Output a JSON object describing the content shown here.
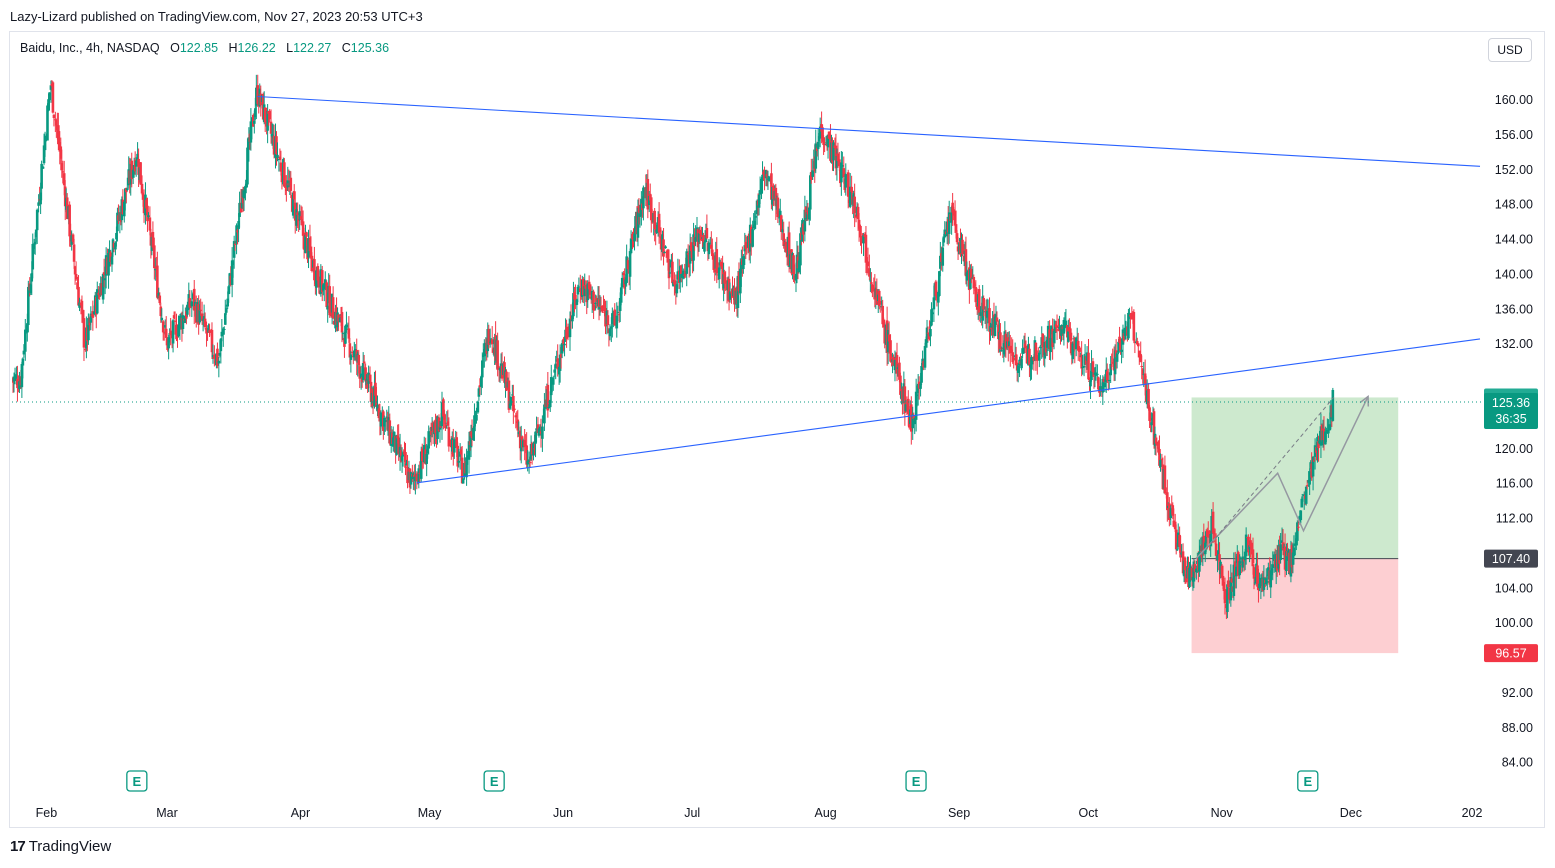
{
  "header": {
    "published": "Lazy-Lizard published on TradingView.com, Nov 27, 2023 20:53 UTC+3"
  },
  "legend": {
    "symbol": "Baidu, Inc., 4h, NASDAQ",
    "o_label": "O",
    "o": "122.85",
    "h_label": "H",
    "h": "126.22",
    "l_label": "L",
    "l": "122.27",
    "c_label": "C",
    "c": "125.36"
  },
  "currency_button": "USD",
  "brand": {
    "logo_glyph": "17",
    "name": "TradingView"
  },
  "colors": {
    "up": "#089981",
    "down": "#f23645",
    "trendline": "#2962ff",
    "profit_zone": "#4caf50",
    "loss_zone": "#f7525f",
    "neutral": "#434651"
  },
  "chart_data": {
    "type": "candlestick",
    "symbol": "Baidu, Inc.",
    "timeframe": "4h",
    "exchange": "NASDAQ",
    "x_labels": [
      "Feb",
      "Mar",
      "Apr",
      "May",
      "Jun",
      "Jul",
      "Aug",
      "Sep",
      "Oct",
      "Nov",
      "Dec",
      "202"
    ],
    "y_ticks": [
      "160.00",
      "156.00",
      "152.00",
      "148.00",
      "144.00",
      "140.00",
      "136.00",
      "132.00",
      "120.00",
      "116.00",
      "112.00",
      "104.00",
      "100.00",
      "92.00",
      "88.00",
      "84.00"
    ],
    "ylim": [
      82,
      167
    ],
    "last_price": "125.36",
    "countdown": "36:35",
    "price_badges": {
      "target": "125.89",
      "entry": "107.40",
      "stop": "96.57"
    },
    "earnings_marker": "E",
    "earnings_months": [
      "Mar",
      "May",
      "Aug",
      "Nov"
    ],
    "swing_points": [
      {
        "date": "2023-01-26",
        "price": 128
      },
      {
        "date": "2023-02-02",
        "price": 162
      },
      {
        "date": "2023-02-10",
        "price": 132
      },
      {
        "date": "2023-02-22",
        "price": 154
      },
      {
        "date": "2023-03-01",
        "price": 132
      },
      {
        "date": "2023-03-07",
        "price": 137
      },
      {
        "date": "2023-03-13",
        "price": 130
      },
      {
        "date": "2023-03-22",
        "price": 161
      },
      {
        "date": "2023-04-04",
        "price": 141
      },
      {
        "date": "2023-04-18",
        "price": 126
      },
      {
        "date": "2023-04-27",
        "price": 116
      },
      {
        "date": "2023-05-04",
        "price": 124
      },
      {
        "date": "2023-05-09",
        "price": 117
      },
      {
        "date": "2023-05-15",
        "price": 134
      },
      {
        "date": "2023-05-24",
        "price": 118
      },
      {
        "date": "2023-06-05",
        "price": 139
      },
      {
        "date": "2023-06-13",
        "price": 134
      },
      {
        "date": "2023-06-20",
        "price": 150
      },
      {
        "date": "2023-06-27",
        "price": 139
      },
      {
        "date": "2023-07-03",
        "price": 145
      },
      {
        "date": "2023-07-11",
        "price": 137
      },
      {
        "date": "2023-07-18",
        "price": 152
      },
      {
        "date": "2023-07-25",
        "price": 140
      },
      {
        "date": "2023-07-31",
        "price": 157
      },
      {
        "date": "2023-08-08",
        "price": 148
      },
      {
        "date": "2023-08-15",
        "price": 133
      },
      {
        "date": "2023-08-21",
        "price": 123
      },
      {
        "date": "2023-08-30",
        "price": 147
      },
      {
        "date": "2023-09-05",
        "price": 137
      },
      {
        "date": "2023-09-15",
        "price": 130
      },
      {
        "date": "2023-09-25",
        "price": 134
      },
      {
        "date": "2023-10-04",
        "price": 127
      },
      {
        "date": "2023-10-11",
        "price": 135
      },
      {
        "date": "2023-10-20",
        "price": 113
      },
      {
        "date": "2023-10-24",
        "price": 105
      },
      {
        "date": "2023-10-30",
        "price": 111
      },
      {
        "date": "2023-11-02",
        "price": 103
      },
      {
        "date": "2023-11-07",
        "price": 109
      },
      {
        "date": "2023-11-10",
        "price": 104
      },
      {
        "date": "2023-11-15",
        "price": 108
      },
      {
        "date": "2023-11-17",
        "price": 107
      },
      {
        "date": "2023-11-20",
        "price": 114
      },
      {
        "date": "2023-11-24",
        "price": 121
      },
      {
        "date": "2023-11-27",
        "price": 125.4
      }
    ],
    "trendlines": [
      {
        "from": {
          "date": "2023-03-22",
          "price": 160.4
        },
        "to": {
          "date": "2023-12-31",
          "price": 152.4
        }
      },
      {
        "from": {
          "date": "2023-04-28",
          "price": 116.1
        },
        "to": {
          "date": "2023-12-31",
          "price": 132.6
        }
      }
    ],
    "position": {
      "type": "long",
      "start": "2023-10-25",
      "end": "2023-12-12",
      "entry": 107.4,
      "target": 125.89,
      "stop": 96.57
    },
    "projection_path": [
      {
        "date": "2023-10-26",
        "price": 107.4
      },
      {
        "date": "2023-11-14",
        "price": 117.2
      },
      {
        "date": "2023-11-20",
        "price": 110.6
      },
      {
        "date": "2023-12-05",
        "price": 126
      }
    ]
  }
}
